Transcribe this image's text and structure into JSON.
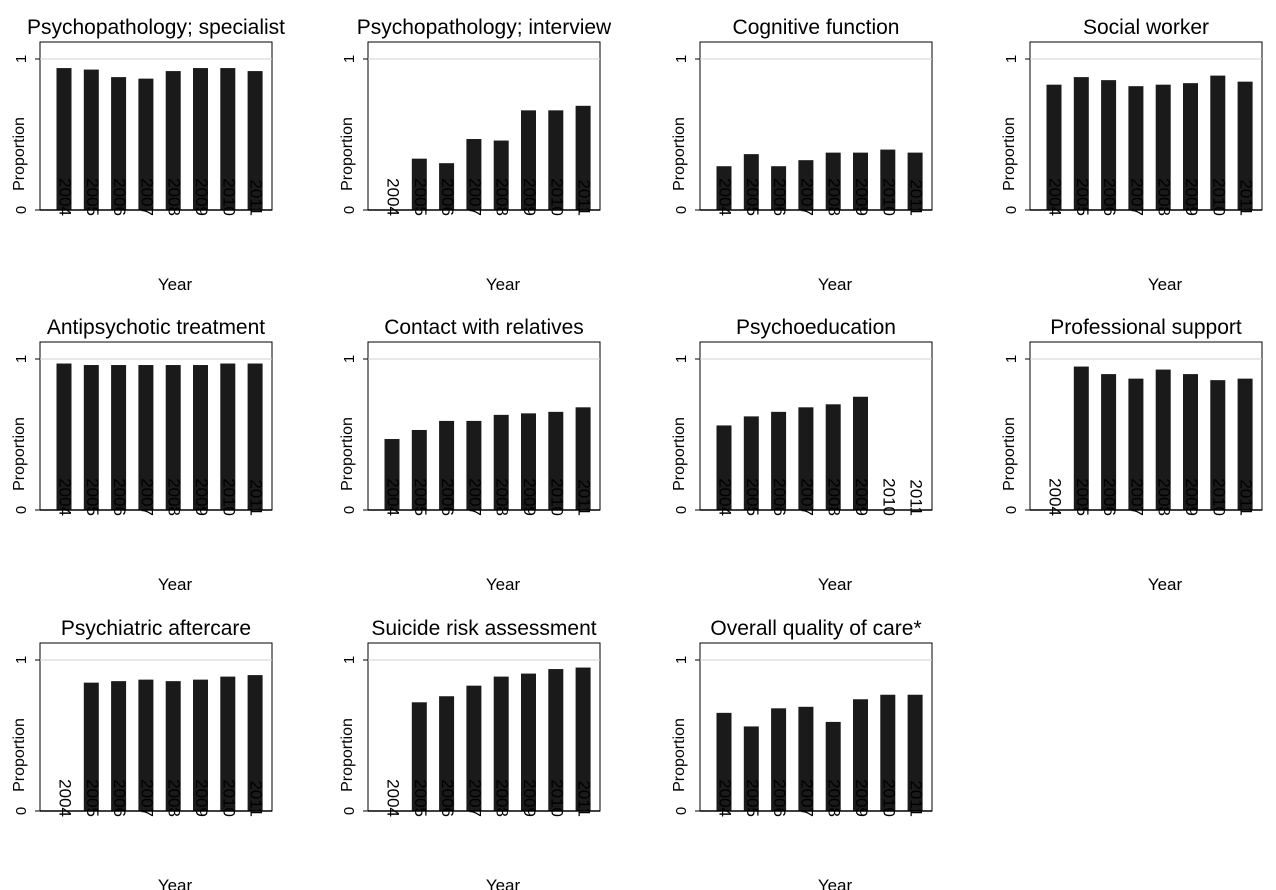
{
  "chart_data": [
    {
      "type": "bar",
      "title": "Psychopathology; specialist",
      "xlabel": "Year",
      "ylabel": "Proportion",
      "ylim": [
        0,
        1
      ],
      "yticks": [
        "0",
        "1"
      ],
      "grid": true,
      "categories": [
        "2004",
        "2005",
        "2006",
        "2007",
        "2008",
        "2009",
        "2010",
        "2011"
      ],
      "values": [
        0.94,
        0.93,
        0.88,
        0.87,
        0.92,
        0.94,
        0.94,
        0.92
      ]
    },
    {
      "type": "bar",
      "title": "Psychopathology; interview",
      "xlabel": "Year",
      "ylabel": "Proportion",
      "ylim": [
        0,
        1
      ],
      "yticks": [
        "0",
        "1"
      ],
      "grid": true,
      "categories": [
        "2004",
        "2005",
        "2006",
        "2007",
        "2008",
        "2009",
        "2010",
        "2011"
      ],
      "values": [
        0,
        0.34,
        0.31,
        0.47,
        0.46,
        0.66,
        0.66,
        0.69
      ]
    },
    {
      "type": "bar",
      "title": "Cognitive function",
      "xlabel": "Year",
      "ylabel": "Proportion",
      "ylim": [
        0,
        1
      ],
      "yticks": [
        "0",
        "1"
      ],
      "grid": true,
      "categories": [
        "2004",
        "2005",
        "2006",
        "2007",
        "2008",
        "2009",
        "2010",
        "2011"
      ],
      "values": [
        0.29,
        0.37,
        0.29,
        0.33,
        0.38,
        0.38,
        0.4,
        0.38
      ]
    },
    {
      "type": "bar",
      "title": "Social worker",
      "xlabel": "Year",
      "ylabel": "Proportion",
      "ylim": [
        0,
        1
      ],
      "yticks": [
        "0",
        "1"
      ],
      "grid": true,
      "categories": [
        "2004",
        "2005",
        "2006",
        "2007",
        "2008",
        "2009",
        "2010",
        "2011"
      ],
      "values": [
        0.83,
        0.88,
        0.86,
        0.82,
        0.83,
        0.84,
        0.89,
        0.85
      ]
    },
    {
      "type": "bar",
      "title": "Antipsychotic treatment",
      "xlabel": "Year",
      "ylabel": "Proportion",
      "ylim": [
        0,
        1
      ],
      "yticks": [
        "0",
        "1"
      ],
      "grid": true,
      "categories": [
        "2004",
        "2005",
        "2006",
        "2007",
        "2008",
        "2009",
        "2010",
        "2011"
      ],
      "values": [
        0.97,
        0.96,
        0.96,
        0.96,
        0.96,
        0.96,
        0.97,
        0.97
      ]
    },
    {
      "type": "bar",
      "title": "Contact with relatives",
      "xlabel": "Year",
      "ylabel": "Proportion",
      "ylim": [
        0,
        1
      ],
      "yticks": [
        "0",
        "1"
      ],
      "grid": true,
      "categories": [
        "2004",
        "2005",
        "2006",
        "2007",
        "2008",
        "2009",
        "2010",
        "2011"
      ],
      "values": [
        0.47,
        0.53,
        0.59,
        0.59,
        0.63,
        0.64,
        0.65,
        0.68
      ]
    },
    {
      "type": "bar",
      "title": "Psychoeducation",
      "xlabel": "Year",
      "ylabel": "Proportion",
      "ylim": [
        0,
        1
      ],
      "yticks": [
        "0",
        "1"
      ],
      "grid": true,
      "categories": [
        "2004",
        "2005",
        "2006",
        "2007",
        "2008",
        "2009",
        "2010",
        "2011"
      ],
      "values": [
        0.56,
        0.62,
        0.65,
        0.68,
        0.7,
        0.75,
        0,
        0
      ]
    },
    {
      "type": "bar",
      "title": "Professional support",
      "xlabel": "Year",
      "ylabel": "Proportion",
      "ylim": [
        0,
        1
      ],
      "yticks": [
        "0",
        "1"
      ],
      "grid": true,
      "categories": [
        "2004",
        "2005",
        "2006",
        "2007",
        "2008",
        "2009",
        "2010",
        "2011"
      ],
      "values": [
        0,
        0.95,
        0.9,
        0.87,
        0.93,
        0.9,
        0.86,
        0.87
      ]
    },
    {
      "type": "bar",
      "title": "Psychiatric aftercare",
      "xlabel": "Year",
      "ylabel": "Proportion",
      "ylim": [
        0,
        1
      ],
      "yticks": [
        "0",
        "1"
      ],
      "grid": true,
      "categories": [
        "2004",
        "2005",
        "2006",
        "2007",
        "2008",
        "2009",
        "2010",
        "2011"
      ],
      "values": [
        0,
        0.85,
        0.86,
        0.87,
        0.86,
        0.87,
        0.89,
        0.9
      ]
    },
    {
      "type": "bar",
      "title": "Suicide risk assessment",
      "xlabel": "Year",
      "ylabel": "Proportion",
      "ylim": [
        0,
        1
      ],
      "yticks": [
        "0",
        "1"
      ],
      "grid": true,
      "categories": [
        "2004",
        "2005",
        "2006",
        "2007",
        "2008",
        "2009",
        "2010",
        "2011"
      ],
      "values": [
        0,
        0.72,
        0.76,
        0.83,
        0.89,
        0.91,
        0.94,
        0.95
      ]
    },
    {
      "type": "bar",
      "title": "Overall quality of care*",
      "xlabel": "Year",
      "ylabel": "Proportion",
      "ylim": [
        0,
        1
      ],
      "yticks": [
        "0",
        "1"
      ],
      "grid": true,
      "categories": [
        "2004",
        "2005",
        "2006",
        "2007",
        "2008",
        "2009",
        "2010",
        "2011"
      ],
      "values": [
        0.65,
        0.56,
        0.68,
        0.69,
        0.59,
        0.74,
        0.77,
        0.77
      ]
    }
  ],
  "colors": {
    "bar": "#1a1a1a",
    "axis": "#000000",
    "grid": "#d0d0d0",
    "background": "#ffffff"
  }
}
